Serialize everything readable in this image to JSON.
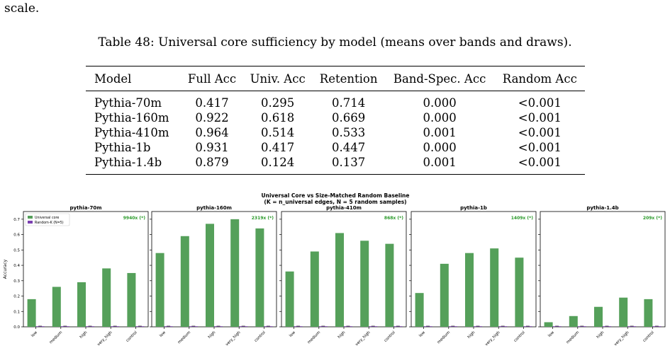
{
  "lead_text": "scale.",
  "caption": "Table 48: Universal core sufficiency by model (means over bands and draws).",
  "table": {
    "headers": [
      "Model",
      "Full Acc",
      "Univ. Acc",
      "Retention",
      "Band-Spec. Acc",
      "Random Acc"
    ],
    "rows": [
      [
        "Pythia-70m",
        "0.417",
        "0.295",
        "0.714",
        "0.000",
        "<0.001"
      ],
      [
        "Pythia-160m",
        "0.922",
        "0.618",
        "0.669",
        "0.000",
        "<0.001"
      ],
      [
        "Pythia-410m",
        "0.964",
        "0.514",
        "0.533",
        "0.001",
        "<0.001"
      ],
      [
        "Pythia-1b",
        "0.931",
        "0.417",
        "0.447",
        "0.000",
        "<0.001"
      ],
      [
        "Pythia-1.4b",
        "0.879",
        "0.124",
        "0.137",
        "0.001",
        "<0.001"
      ]
    ]
  },
  "chart_data": {
    "type": "bar",
    "title": "Universal Core vs Size-Matched Random Baseline",
    "subtitle": "(K = n_universal edges, N = 5 random samples)",
    "ylabel": "Accuracy",
    "ylim": [
      0,
      0.75
    ],
    "yticks": [
      "0.0",
      "0.1",
      "0.2",
      "0.3",
      "0.4",
      "0.5",
      "0.6",
      "0.7"
    ],
    "categories": [
      "low",
      "medium",
      "high",
      "very_high",
      "control"
    ],
    "legend": [
      "Universal core",
      "Random-K (N=5)"
    ],
    "legend_position": "top-left",
    "colors": {
      "universal": "#55a05a",
      "random": "#7b3fb0",
      "ratio": "#2a9a2a"
    },
    "panels": [
      {
        "name": "pythia-70m",
        "ratio": "9940x (*)",
        "universal": [
          0.18,
          0.26,
          0.29,
          0.38,
          0.35
        ],
        "random": [
          0.001,
          0.001,
          0.001,
          0.001,
          0.001
        ]
      },
      {
        "name": "pythia-160m",
        "ratio": "2319x (*)",
        "universal": [
          0.48,
          0.59,
          0.67,
          0.7,
          0.64
        ],
        "random": [
          0.001,
          0.001,
          0.001,
          0.001,
          0.001
        ]
      },
      {
        "name": "pythia-410m",
        "ratio": "868x (*)",
        "universal": [
          0.36,
          0.49,
          0.61,
          0.56,
          0.54
        ],
        "random": [
          0.001,
          0.001,
          0.001,
          0.001,
          0.001
        ]
      },
      {
        "name": "pythia-1b",
        "ratio": "1409x (*)",
        "universal": [
          0.22,
          0.41,
          0.48,
          0.51,
          0.45
        ],
        "random": [
          0.001,
          0.001,
          0.001,
          0.001,
          0.001
        ]
      },
      {
        "name": "pythia-1.4b",
        "ratio": "209x (*)",
        "universal": [
          0.03,
          0.07,
          0.13,
          0.19,
          0.18
        ],
        "random": [
          0.001,
          0.001,
          0.001,
          0.001,
          0.001
        ]
      }
    ]
  }
}
